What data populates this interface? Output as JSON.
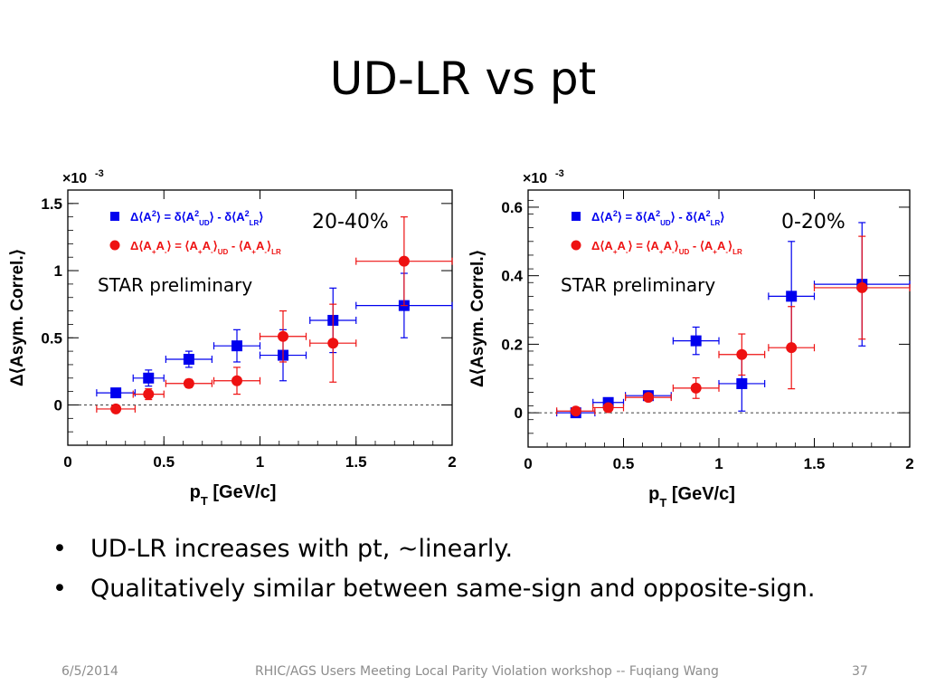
{
  "slide": {
    "title": "UD-LR vs pt",
    "bullets": [
      "UD-LR increases with pt, ~linearly.",
      "Qualitatively similar between same-sign and opposite-sign."
    ],
    "footer": {
      "date": "6/5/2014",
      "center": "RHIC/AGS Users Meeting Local Parity Violation workshop -- Fuqiang Wang",
      "page": "37"
    }
  },
  "chart_data": [
    {
      "type": "scatter",
      "panel_label": "20-40%",
      "annotation": "STAR preliminary",
      "multiplier": "×10",
      "multiplier_exp": "-3",
      "xlabel_main": "p",
      "xlabel_sub": "T",
      "xlabel_rest": "[GeV/c]",
      "ylabel": "Δ⟨Asym. Correl.⟩",
      "xlim": [
        0,
        2
      ],
      "ylim": [
        -0.3,
        1.6
      ],
      "xticks": [
        0,
        0.5,
        1,
        1.5,
        2
      ],
      "xtick_labels": [
        "0",
        "0.5",
        "1",
        "1.5",
        "2"
      ],
      "yticks": [
        0,
        0.5,
        1,
        1.5
      ],
      "ytick_labels": [
        "0",
        "0.5",
        "1",
        "1.5"
      ],
      "reference_line": 0,
      "colors": {
        "ud": "#0000ee",
        "lr": "#ee1111"
      },
      "series": [
        {
          "key": "ud",
          "marker": "square",
          "points": [
            {
              "x": 0.25,
              "y": 0.09,
              "xerr": 0.1,
              "yerr": 0.02
            },
            {
              "x": 0.42,
              "y": 0.2,
              "xerr": 0.08,
              "yerr": 0.06
            },
            {
              "x": 0.63,
              "y": 0.34,
              "xerr": 0.12,
              "yerr": 0.06
            },
            {
              "x": 0.88,
              "y": 0.44,
              "xerr": 0.12,
              "yerr": 0.12
            },
            {
              "x": 1.12,
              "y": 0.37,
              "xerr": 0.12,
              "yerr": 0.19
            },
            {
              "x": 1.38,
              "y": 0.63,
              "xerr": 0.12,
              "yerr": 0.24
            },
            {
              "x": 1.75,
              "y": 0.74,
              "xerr": 0.25,
              "yerr": 0.24
            }
          ]
        },
        {
          "key": "lr",
          "marker": "circle",
          "points": [
            {
              "x": 0.25,
              "y": -0.03,
              "xerr": 0.1,
              "yerr": 0.02
            },
            {
              "x": 0.42,
              "y": 0.08,
              "xerr": 0.08,
              "yerr": 0.04
            },
            {
              "x": 0.63,
              "y": 0.16,
              "xerr": 0.12,
              "yerr": 0.03
            },
            {
              "x": 0.88,
              "y": 0.18,
              "xerr": 0.12,
              "yerr": 0.1
            },
            {
              "x": 1.12,
              "y": 0.51,
              "xerr": 0.12,
              "yerr": 0.19
            },
            {
              "x": 1.38,
              "y": 0.46,
              "xerr": 0.12,
              "yerr": 0.29
            },
            {
              "x": 1.75,
              "y": 1.07,
              "xerr": 0.25,
              "yerr": 0.33
            }
          ]
        }
      ],
      "legend": [
        {
          "key": "ud",
          "text": "Δ⟨A²⟩ = δ⟨A²_UD⟩ - δ⟨A²_LR⟩"
        },
        {
          "key": "lr",
          "text": "Δ⟨A₊A₋⟩ = ⟨A₊A₋⟩_UD - ⟨A₊A₋⟩_LR"
        }
      ]
    },
    {
      "type": "scatter",
      "panel_label": "0-20%",
      "annotation": "STAR preliminary",
      "multiplier": "×10",
      "multiplier_exp": "-3",
      "xlabel_main": "p",
      "xlabel_sub": "T",
      "xlabel_rest": "[GeV/c]",
      "ylabel": "Δ⟨Asym. Correl.⟩",
      "xlim": [
        0,
        2
      ],
      "ylim": [
        -0.1,
        0.65
      ],
      "xticks": [
        0,
        0.5,
        1,
        1.5,
        2
      ],
      "xtick_labels": [
        "0",
        "0.5",
        "1",
        "1.5",
        "2"
      ],
      "yticks": [
        0,
        0.2,
        0.4,
        0.6
      ],
      "ytick_labels": [
        "0",
        "0.2",
        "0.4",
        "0.6"
      ],
      "reference_line": 0,
      "colors": {
        "ud": "#0000ee",
        "lr": "#ee1111"
      },
      "series": [
        {
          "key": "ud",
          "marker": "square",
          "points": [
            {
              "x": 0.25,
              "y": 0.0,
              "xerr": 0.1,
              "yerr": 0.01
            },
            {
              "x": 0.42,
              "y": 0.03,
              "xerr": 0.08,
              "yerr": 0.01
            },
            {
              "x": 0.63,
              "y": 0.05,
              "xerr": 0.12,
              "yerr": 0.01
            },
            {
              "x": 0.88,
              "y": 0.21,
              "xerr": 0.12,
              "yerr": 0.04
            },
            {
              "x": 1.12,
              "y": 0.085,
              "xerr": 0.12,
              "yerr": 0.08
            },
            {
              "x": 1.38,
              "y": 0.34,
              "xerr": 0.12,
              "yerr": 0.16
            },
            {
              "x": 1.75,
              "y": 0.375,
              "xerr": 0.25,
              "yerr": 0.18
            }
          ]
        },
        {
          "key": "lr",
          "marker": "circle",
          "points": [
            {
              "x": 0.25,
              "y": 0.005,
              "xerr": 0.1,
              "yerr": 0.005
            },
            {
              "x": 0.42,
              "y": 0.015,
              "xerr": 0.08,
              "yerr": 0.01
            },
            {
              "x": 0.63,
              "y": 0.045,
              "xerr": 0.12,
              "yerr": 0.01
            },
            {
              "x": 0.88,
              "y": 0.072,
              "xerr": 0.12,
              "yerr": 0.03
            },
            {
              "x": 1.12,
              "y": 0.17,
              "xerr": 0.12,
              "yerr": 0.06
            },
            {
              "x": 1.38,
              "y": 0.19,
              "xerr": 0.12,
              "yerr": 0.12
            },
            {
              "x": 1.75,
              "y": 0.365,
              "xerr": 0.25,
              "yerr": 0.15
            }
          ]
        }
      ],
      "legend": [
        {
          "key": "ud",
          "text": "Δ⟨A²⟩ = δ⟨A²_UD⟩ - δ⟨A²_LR⟩"
        },
        {
          "key": "lr",
          "text": "Δ⟨A₊A₋⟩ = ⟨A₊A₋⟩_UD - ⟨A₊A₋⟩_LR"
        }
      ]
    }
  ]
}
